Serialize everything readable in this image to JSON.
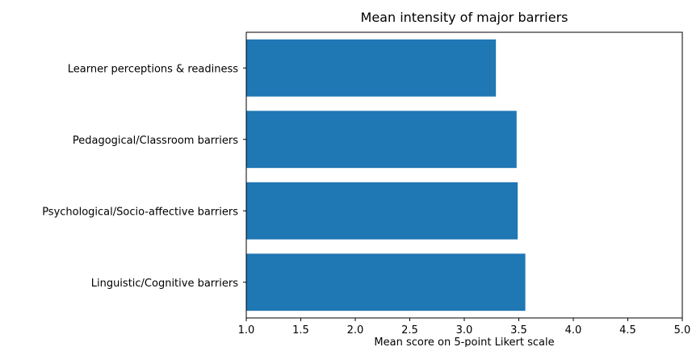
{
  "chart_data": {
    "type": "bar",
    "orientation": "horizontal",
    "title": "Mean intensity of major barriers",
    "xlabel": "Mean score on 5-point Likert scale",
    "ylabel": "",
    "categories": [
      "Linguistic/Cognitive barriers",
      "Psychological/Socio-affective barriers",
      "Pedagogical/Classroom barriers",
      "Learner perceptions & readiness"
    ],
    "values": [
      3.56,
      3.49,
      3.48,
      3.29
    ],
    "xlim": [
      1.0,
      5.0
    ],
    "xticks": [
      "1.0",
      "1.5",
      "2.0",
      "2.5",
      "3.0",
      "3.5",
      "4.0",
      "4.5",
      "5.0"
    ],
    "grid": false,
    "legend": "none",
    "bar_color": "#1f77b4"
  }
}
